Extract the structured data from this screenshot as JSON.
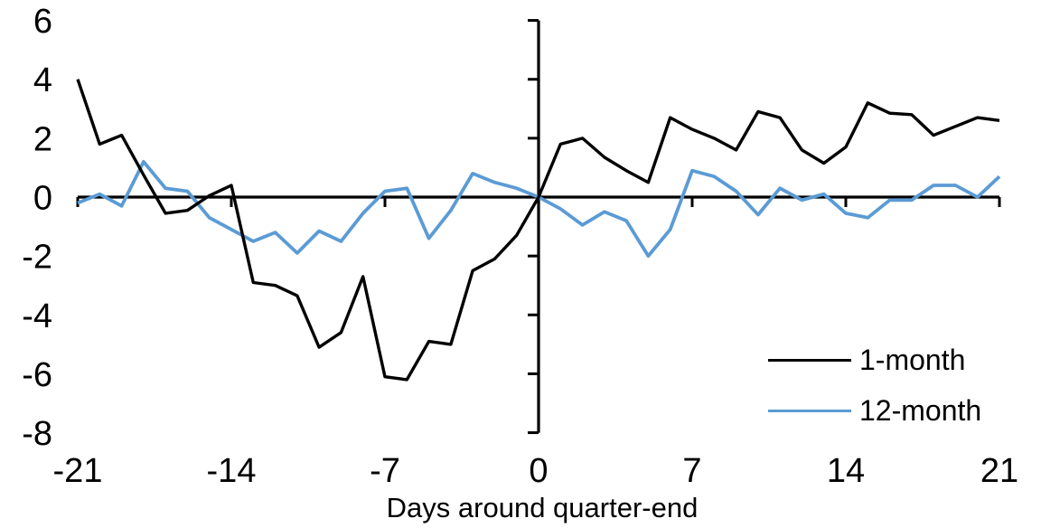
{
  "chart_data": {
    "type": "line",
    "title": "",
    "xlabel": "Days around quarter-end",
    "ylabel": "",
    "xlim": [
      -21,
      21
    ],
    "ylim": [
      -8,
      6
    ],
    "grid": false,
    "legend_position": "inside-bottom-right",
    "axis_color": "#000000",
    "xticks": [
      -21,
      -14,
      -7,
      0,
      7,
      14,
      21
    ],
    "yticks": [
      -8,
      -6,
      -4,
      -2,
      0,
      2,
      4,
      6
    ],
    "x": [
      -21,
      -20,
      -19,
      -18,
      -17,
      -16,
      -15,
      -14,
      -13,
      -12,
      -11,
      -10,
      -9,
      -8,
      -7,
      -6,
      -5,
      -4,
      -3,
      -2,
      -1,
      0,
      1,
      2,
      3,
      4,
      5,
      6,
      7,
      8,
      9,
      10,
      11,
      12,
      13,
      14,
      15,
      16,
      17,
      18,
      19,
      20,
      21
    ],
    "series": [
      {
        "name": "1-month",
        "color": "#000000",
        "values": [
          4.0,
          1.8,
          2.1,
          0.75,
          -0.55,
          -0.45,
          0.05,
          0.4,
          -2.9,
          -3.0,
          -3.35,
          -5.1,
          -4.6,
          -2.7,
          -6.1,
          -6.2,
          -4.9,
          -5.0,
          -2.5,
          -2.1,
          -1.3,
          0.0,
          1.8,
          2.0,
          1.35,
          0.9,
          0.5,
          2.7,
          2.3,
          2.0,
          1.6,
          2.9,
          2.7,
          1.6,
          1.15,
          1.7,
          3.2,
          2.85,
          2.8,
          2.1,
          2.4,
          2.7,
          2.6
        ]
      },
      {
        "name": "12-month",
        "color": "#5B9BD5",
        "values": [
          -0.2,
          0.1,
          -0.3,
          1.2,
          0.3,
          0.2,
          -0.7,
          -1.1,
          -1.5,
          -1.2,
          -1.9,
          -1.15,
          -1.5,
          -0.55,
          0.2,
          0.3,
          -1.4,
          -0.45,
          0.8,
          0.5,
          0.3,
          0.0,
          -0.4,
          -0.95,
          -0.5,
          -0.8,
          -2.0,
          -1.1,
          0.9,
          0.7,
          0.2,
          -0.6,
          0.3,
          -0.1,
          0.1,
          -0.55,
          -0.7,
          -0.1,
          -0.1,
          0.4,
          0.4,
          0.0,
          0.7
        ]
      }
    ]
  }
}
